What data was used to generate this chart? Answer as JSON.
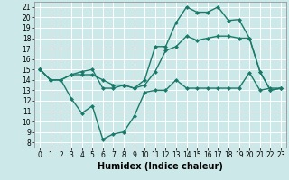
{
  "xlabel": "Humidex (Indice chaleur)",
  "bg_color": "#cce8e8",
  "line_color": "#1a7a6a",
  "grid_color": "#ffffff",
  "ylim": [
    7.5,
    21.5
  ],
  "xlim": [
    -0.5,
    23.5
  ],
  "yticks": [
    8,
    9,
    10,
    11,
    12,
    13,
    14,
    15,
    16,
    17,
    18,
    19,
    20,
    21
  ],
  "xticks": [
    0,
    1,
    2,
    3,
    4,
    5,
    6,
    7,
    8,
    9,
    10,
    11,
    12,
    13,
    14,
    15,
    16,
    17,
    18,
    19,
    20,
    21,
    22,
    23
  ],
  "line1_x": [
    0,
    1,
    2,
    3,
    4,
    5,
    6,
    7,
    8,
    9,
    10,
    11,
    12,
    13,
    14,
    15,
    16,
    17,
    18,
    19,
    20,
    21,
    22,
    23
  ],
  "line1_y": [
    15,
    14,
    14,
    12.2,
    10.8,
    11.5,
    8.3,
    8.8,
    9.0,
    10.5,
    12.8,
    13.0,
    13.0,
    14.0,
    13.2,
    13.2,
    13.2,
    13.2,
    13.2,
    13.2,
    14.7,
    13.0,
    13.2,
    13.2
  ],
  "line2_x": [
    0,
    1,
    2,
    3,
    4,
    5,
    6,
    7,
    8,
    9,
    10,
    11,
    12,
    13,
    14,
    15,
    16,
    17,
    18,
    19,
    20,
    21,
    22,
    23
  ],
  "line2_y": [
    15,
    14,
    14,
    14.5,
    14.8,
    15.0,
    13.2,
    13.2,
    13.5,
    13.2,
    13.5,
    14.8,
    16.8,
    17.2,
    18.2,
    17.8,
    18.0,
    18.2,
    18.2,
    18.0,
    18.0,
    14.8,
    13.0,
    13.2
  ],
  "line3_x": [
    0,
    1,
    2,
    3,
    4,
    5,
    6,
    7,
    8,
    9,
    10,
    11,
    12,
    13,
    14,
    15,
    16,
    17,
    18,
    19,
    20,
    21,
    22,
    23
  ],
  "line3_y": [
    15,
    14,
    14,
    14.5,
    14.5,
    14.5,
    14.0,
    13.5,
    13.5,
    13.2,
    14.0,
    17.2,
    17.2,
    19.5,
    21.0,
    20.5,
    20.5,
    21.0,
    19.7,
    19.8,
    18.0,
    14.8,
    13.0,
    13.2
  ],
  "markersize": 2.5,
  "linewidth": 1.0,
  "tick_fontsize": 5.5,
  "xlabel_fontsize": 7.0
}
